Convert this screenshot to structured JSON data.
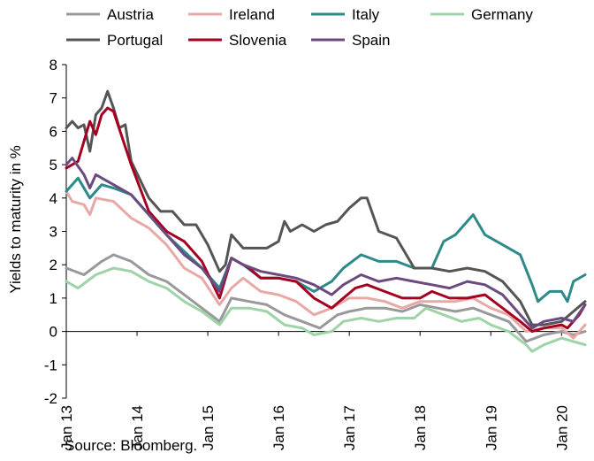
{
  "chart_data": {
    "type": "line",
    "ylabel": "Yields to maturity in %",
    "ylim": [
      -2,
      8
    ],
    "yticks": [
      -2,
      -1,
      0,
      1,
      2,
      3,
      4,
      5,
      6,
      7,
      8
    ],
    "xlim": [
      "2013-01",
      "2020-05"
    ],
    "xticks": [
      {
        "label": "Jan 13",
        "x": "2013-01"
      },
      {
        "label": "Jan 14",
        "x": "2014-01"
      },
      {
        "label": "Jan 15",
        "x": "2015-01"
      },
      {
        "label": "Jan 16",
        "x": "2016-01"
      },
      {
        "label": "Jan 17",
        "x": "2017-01"
      },
      {
        "label": "Jan 18",
        "x": "2018-01"
      },
      {
        "label": "Jan 19",
        "x": "2019-01"
      },
      {
        "label": "Jan 20",
        "x": "2020-01"
      }
    ],
    "grid": false,
    "legend": "top",
    "source": "Source: Bloomberg.",
    "series": [
      {
        "name": "Austria",
        "color": "#999999",
        "points": [
          [
            "2013-01",
            1.9
          ],
          [
            "2013-04",
            1.7
          ],
          [
            "2013-07",
            2.1
          ],
          [
            "2013-09",
            2.3
          ],
          [
            "2013-12",
            2.1
          ],
          [
            "2014-03",
            1.7
          ],
          [
            "2014-06",
            1.5
          ],
          [
            "2014-09",
            1.1
          ],
          [
            "2014-12",
            0.7
          ],
          [
            "2015-03",
            0.3
          ],
          [
            "2015-05",
            1.0
          ],
          [
            "2015-08",
            0.9
          ],
          [
            "2015-11",
            0.8
          ],
          [
            "2016-02",
            0.5
          ],
          [
            "2016-05",
            0.3
          ],
          [
            "2016-08",
            0.1
          ],
          [
            "2016-11",
            0.5
          ],
          [
            "2017-01",
            0.6
          ],
          [
            "2017-04",
            0.7
          ],
          [
            "2017-07",
            0.7
          ],
          [
            "2017-10",
            0.6
          ],
          [
            "2018-01",
            0.8
          ],
          [
            "2018-04",
            0.7
          ],
          [
            "2018-07",
            0.6
          ],
          [
            "2018-10",
            0.7
          ],
          [
            "2019-01",
            0.5
          ],
          [
            "2019-04",
            0.3
          ],
          [
            "2019-07",
            -0.3
          ],
          [
            "2019-10",
            -0.1
          ],
          [
            "2020-01",
            0.0
          ],
          [
            "2020-03",
            -0.1
          ],
          [
            "2020-05",
            0.0
          ]
        ]
      },
      {
        "name": "Ireland",
        "color": "#e8a9a6",
        "points": [
          [
            "2013-01",
            4.2
          ],
          [
            "2013-02",
            3.9
          ],
          [
            "2013-04",
            3.8
          ],
          [
            "2013-05",
            3.5
          ],
          [
            "2013-06",
            4.0
          ],
          [
            "2013-09",
            3.9
          ],
          [
            "2013-12",
            3.4
          ],
          [
            "2014-03",
            3.1
          ],
          [
            "2014-06",
            2.6
          ],
          [
            "2014-09",
            1.9
          ],
          [
            "2014-12",
            1.6
          ],
          [
            "2015-03",
            0.8
          ],
          [
            "2015-05",
            1.3
          ],
          [
            "2015-07",
            1.6
          ],
          [
            "2015-10",
            1.2
          ],
          [
            "2016-01",
            1.1
          ],
          [
            "2016-04",
            0.9
          ],
          [
            "2016-07",
            0.5
          ],
          [
            "2016-10",
            0.7
          ],
          [
            "2017-01",
            1.0
          ],
          [
            "2017-04",
            1.0
          ],
          [
            "2017-07",
            0.9
          ],
          [
            "2017-10",
            0.7
          ],
          [
            "2018-01",
            0.9
          ],
          [
            "2018-04",
            0.9
          ],
          [
            "2018-07",
            0.9
          ],
          [
            "2018-10",
            1.0
          ],
          [
            "2019-01",
            0.7
          ],
          [
            "2019-04",
            0.5
          ],
          [
            "2019-07",
            0.0
          ],
          [
            "2019-10",
            0.1
          ],
          [
            "2020-01",
            0.1
          ],
          [
            "2020-03",
            -0.2
          ],
          [
            "2020-05",
            0.2
          ]
        ]
      },
      {
        "name": "Italy",
        "color": "#2e8a8a",
        "points": [
          [
            "2013-01",
            4.2
          ],
          [
            "2013-03",
            4.6
          ],
          [
            "2013-05",
            4.0
          ],
          [
            "2013-07",
            4.4
          ],
          [
            "2013-09",
            4.3
          ],
          [
            "2013-12",
            4.1
          ],
          [
            "2014-03",
            3.5
          ],
          [
            "2014-06",
            2.9
          ],
          [
            "2014-09",
            2.4
          ],
          [
            "2014-12",
            1.9
          ],
          [
            "2015-03",
            1.3
          ],
          [
            "2015-05",
            2.2
          ],
          [
            "2015-07",
            2.0
          ],
          [
            "2015-10",
            1.6
          ],
          [
            "2016-01",
            1.6
          ],
          [
            "2016-04",
            1.5
          ],
          [
            "2016-07",
            1.2
          ],
          [
            "2016-10",
            1.5
          ],
          [
            "2016-12",
            1.9
          ],
          [
            "2017-03",
            2.3
          ],
          [
            "2017-06",
            2.1
          ],
          [
            "2017-09",
            2.1
          ],
          [
            "2017-12",
            1.9
          ],
          [
            "2018-03",
            1.9
          ],
          [
            "2018-05",
            2.7
          ],
          [
            "2018-07",
            2.9
          ],
          [
            "2018-10",
            3.5
          ],
          [
            "2018-12",
            2.9
          ],
          [
            "2019-03",
            2.6
          ],
          [
            "2019-06",
            2.3
          ],
          [
            "2019-08",
            1.4
          ],
          [
            "2019-09",
            0.9
          ],
          [
            "2019-11",
            1.2
          ],
          [
            "2020-01",
            1.2
          ],
          [
            "2020-02",
            0.9
          ],
          [
            "2020-03",
            1.5
          ],
          [
            "2020-05",
            1.7
          ]
        ]
      },
      {
        "name": "Germany",
        "color": "#9ed3a8",
        "points": [
          [
            "2013-01",
            1.5
          ],
          [
            "2013-03",
            1.3
          ],
          [
            "2013-06",
            1.7
          ],
          [
            "2013-09",
            1.9
          ],
          [
            "2013-12",
            1.8
          ],
          [
            "2014-03",
            1.5
          ],
          [
            "2014-06",
            1.3
          ],
          [
            "2014-09",
            0.9
          ],
          [
            "2014-12",
            0.6
          ],
          [
            "2015-03",
            0.2
          ],
          [
            "2015-05",
            0.7
          ],
          [
            "2015-08",
            0.7
          ],
          [
            "2015-11",
            0.6
          ],
          [
            "2016-02",
            0.2
          ],
          [
            "2016-05",
            0.1
          ],
          [
            "2016-07",
            -0.1
          ],
          [
            "2016-10",
            0.0
          ],
          [
            "2016-12",
            0.3
          ],
          [
            "2017-03",
            0.4
          ],
          [
            "2017-06",
            0.3
          ],
          [
            "2017-09",
            0.4
          ],
          [
            "2017-12",
            0.4
          ],
          [
            "2018-02",
            0.7
          ],
          [
            "2018-05",
            0.5
          ],
          [
            "2018-08",
            0.3
          ],
          [
            "2018-11",
            0.4
          ],
          [
            "2019-01",
            0.2
          ],
          [
            "2019-04",
            0.0
          ],
          [
            "2019-07",
            -0.4
          ],
          [
            "2019-08",
            -0.6
          ],
          [
            "2019-10",
            -0.4
          ],
          [
            "2020-01",
            -0.2
          ],
          [
            "2020-03",
            -0.3
          ],
          [
            "2020-05",
            -0.4
          ]
        ]
      },
      {
        "name": "Portugal",
        "color": "#555555",
        "points": [
          [
            "2013-01",
            6.1
          ],
          [
            "2013-02",
            6.3
          ],
          [
            "2013-03",
            6.1
          ],
          [
            "2013-04",
            6.2
          ],
          [
            "2013-05",
            5.4
          ],
          [
            "2013-06",
            6.5
          ],
          [
            "2013-07",
            6.7
          ],
          [
            "2013-08",
            7.2
          ],
          [
            "2013-09",
            6.7
          ],
          [
            "2013-10",
            6.1
          ],
          [
            "2013-11",
            6.2
          ],
          [
            "2013-12",
            5.1
          ],
          [
            "2014-03",
            4.0
          ],
          [
            "2014-05",
            3.6
          ],
          [
            "2014-07",
            3.6
          ],
          [
            "2014-09",
            3.2
          ],
          [
            "2014-11",
            3.2
          ],
          [
            "2015-01",
            2.6
          ],
          [
            "2015-03",
            1.8
          ],
          [
            "2015-04",
            2.0
          ],
          [
            "2015-05",
            2.9
          ],
          [
            "2015-07",
            2.5
          ],
          [
            "2015-09",
            2.5
          ],
          [
            "2015-11",
            2.5
          ],
          [
            "2016-01",
            2.7
          ],
          [
            "2016-02",
            3.3
          ],
          [
            "2016-03",
            3.0
          ],
          [
            "2016-05",
            3.2
          ],
          [
            "2016-07",
            3.0
          ],
          [
            "2016-09",
            3.2
          ],
          [
            "2016-11",
            3.3
          ],
          [
            "2017-01",
            3.7
          ],
          [
            "2017-03",
            4.0
          ],
          [
            "2017-04",
            4.0
          ],
          [
            "2017-06",
            3.0
          ],
          [
            "2017-09",
            2.8
          ],
          [
            "2017-12",
            1.9
          ],
          [
            "2018-03",
            1.9
          ],
          [
            "2018-06",
            1.8
          ],
          [
            "2018-09",
            1.9
          ],
          [
            "2018-12",
            1.8
          ],
          [
            "2019-03",
            1.5
          ],
          [
            "2019-06",
            0.9
          ],
          [
            "2019-08",
            0.2
          ],
          [
            "2019-10",
            0.2
          ],
          [
            "2020-01",
            0.3
          ],
          [
            "2020-03",
            0.6
          ],
          [
            "2020-05",
            0.9
          ]
        ]
      },
      {
        "name": "Slovenia",
        "color": "#a50021",
        "points": [
          [
            "2013-01",
            4.9
          ],
          [
            "2013-03",
            5.1
          ],
          [
            "2013-05",
            6.3
          ],
          [
            "2013-06",
            5.9
          ],
          [
            "2013-07",
            6.5
          ],
          [
            "2013-08",
            6.7
          ],
          [
            "2013-09",
            6.6
          ],
          [
            "2013-12",
            5.0
          ],
          [
            "2014-03",
            3.6
          ],
          [
            "2014-06",
            3.0
          ],
          [
            "2014-09",
            2.7
          ],
          [
            "2014-12",
            2.1
          ],
          [
            "2015-03",
            1.0
          ],
          [
            "2015-05",
            2.2
          ],
          [
            "2015-08",
            1.9
          ],
          [
            "2015-10",
            1.6
          ],
          [
            "2016-01",
            1.6
          ],
          [
            "2016-04",
            1.5
          ],
          [
            "2016-07",
            1.0
          ],
          [
            "2016-10",
            0.7
          ],
          [
            "2016-12",
            1.0
          ],
          [
            "2017-02",
            1.3
          ],
          [
            "2017-04",
            1.4
          ],
          [
            "2017-07",
            1.2
          ],
          [
            "2017-10",
            1.0
          ],
          [
            "2018-01",
            1.0
          ],
          [
            "2018-03",
            1.2
          ],
          [
            "2018-06",
            1.0
          ],
          [
            "2018-09",
            1.0
          ],
          [
            "2018-12",
            1.1
          ],
          [
            "2019-03",
            0.7
          ],
          [
            "2019-06",
            0.3
          ],
          [
            "2019-08",
            0.0
          ],
          [
            "2019-10",
            0.1
          ],
          [
            "2020-01",
            0.2
          ],
          [
            "2020-02",
            0.1
          ],
          [
            "2020-04",
            0.5
          ],
          [
            "2020-05",
            0.8
          ]
        ]
      },
      {
        "name": "Spain",
        "color": "#6b4a80",
        "points": [
          [
            "2013-01",
            5.0
          ],
          [
            "2013-02",
            5.2
          ],
          [
            "2013-04",
            4.7
          ],
          [
            "2013-05",
            4.3
          ],
          [
            "2013-06",
            4.7
          ],
          [
            "2013-09",
            4.4
          ],
          [
            "2013-12",
            4.1
          ],
          [
            "2014-03",
            3.5
          ],
          [
            "2014-06",
            2.9
          ],
          [
            "2014-09",
            2.3
          ],
          [
            "2014-12",
            1.9
          ],
          [
            "2015-03",
            1.2
          ],
          [
            "2015-05",
            2.2
          ],
          [
            "2015-07",
            2.0
          ],
          [
            "2015-10",
            1.8
          ],
          [
            "2016-01",
            1.7
          ],
          [
            "2016-04",
            1.6
          ],
          [
            "2016-07",
            1.4
          ],
          [
            "2016-10",
            1.1
          ],
          [
            "2016-12",
            1.4
          ],
          [
            "2017-03",
            1.7
          ],
          [
            "2017-06",
            1.5
          ],
          [
            "2017-09",
            1.6
          ],
          [
            "2017-12",
            1.5
          ],
          [
            "2018-03",
            1.4
          ],
          [
            "2018-06",
            1.3
          ],
          [
            "2018-09",
            1.5
          ],
          [
            "2018-12",
            1.4
          ],
          [
            "2019-03",
            1.1
          ],
          [
            "2019-06",
            0.5
          ],
          [
            "2019-08",
            0.1
          ],
          [
            "2019-10",
            0.3
          ],
          [
            "2020-01",
            0.4
          ],
          [
            "2020-03",
            0.3
          ],
          [
            "2020-05",
            0.8
          ]
        ]
      }
    ]
  }
}
